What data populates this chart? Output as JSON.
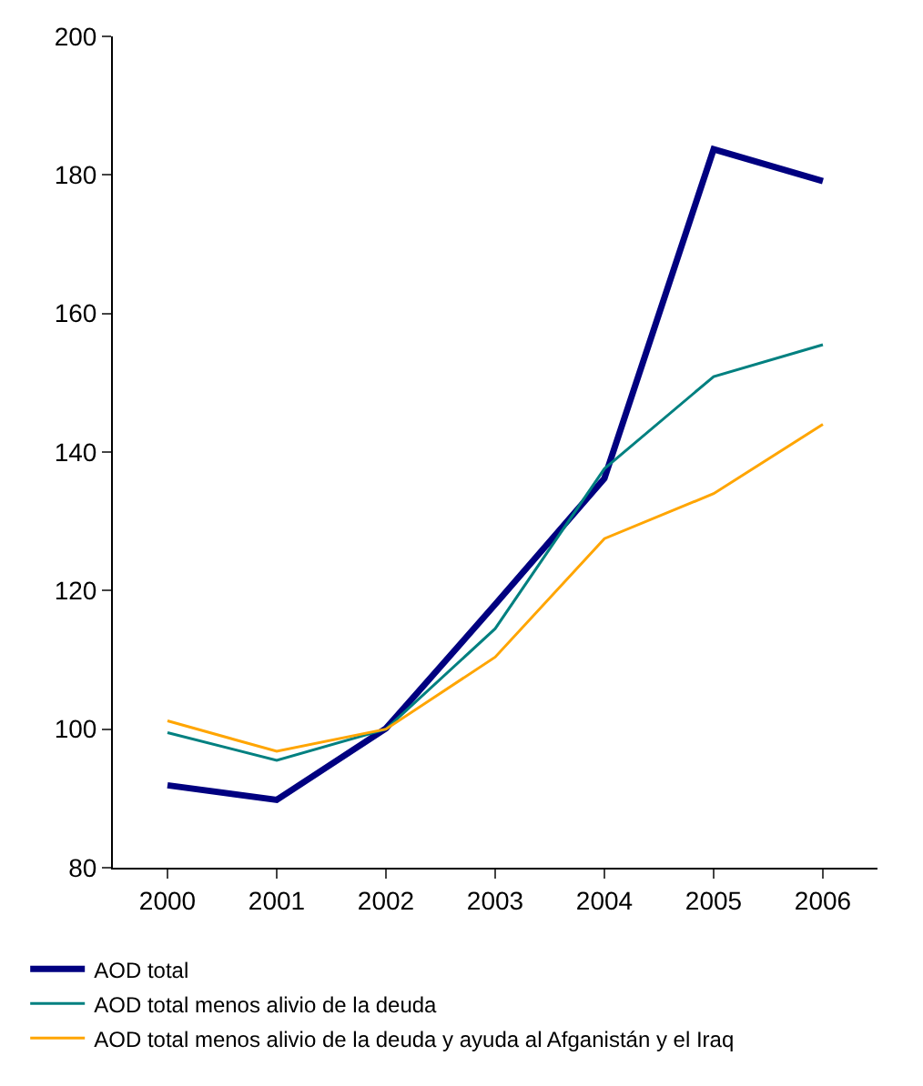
{
  "chart_data": {
    "type": "line",
    "x": [
      2000,
      2001,
      2002,
      2003,
      2004,
      2005,
      2006
    ],
    "xlim": [
      1999.5,
      2006.5
    ],
    "xticks": [
      2000,
      2001,
      2002,
      2003,
      2004,
      2005,
      2006
    ],
    "ylim": [
      80,
      200
    ],
    "yticks": [
      80,
      100,
      120,
      140,
      160,
      180,
      200
    ],
    "legend": "bottom",
    "marker": "none",
    "line_style": "solid",
    "series": [
      {
        "name": "AOD total",
        "color": "#000080",
        "values": [
          91.9,
          89.8,
          100.1,
          118,
          136.2,
          183.7,
          179.1
        ]
      },
      {
        "name": "AOD total menos alivio de la deuda",
        "color": "#008080",
        "values": [
          99.5,
          95.5,
          100,
          114.5,
          137.6,
          150.9,
          155.5
        ]
      },
      {
        "name": "AOD total menos alivio de la deuda y ayuda al Afganistán y el Iraq",
        "color": "#ffa500",
        "values": [
          101.2,
          96.8,
          100,
          110.4,
          127.5,
          134,
          144
        ]
      }
    ]
  }
}
